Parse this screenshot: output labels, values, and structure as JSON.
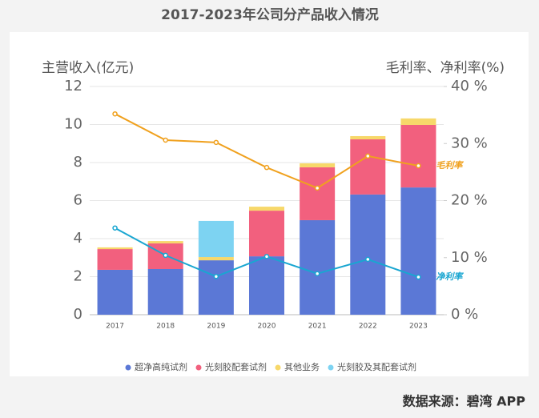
{
  "chart_data": {
    "type": "bar",
    "title": "2017-2023年公司分产品收入情况",
    "source": "数据来源：碧湾 APP",
    "ylabel": "主营收入(亿元)",
    "y2label": "毛利率、净利率(%)",
    "categories": [
      "2017",
      "2018",
      "2019",
      "2020",
      "2021",
      "2022",
      "2023"
    ],
    "stacked": true,
    "series": [
      {
        "name": "超净高纯试剂",
        "color": "#5b78d6",
        "values": [
          2.36,
          2.4,
          2.86,
          3.07,
          4.97,
          6.32,
          6.69
        ]
      },
      {
        "name": "光刻胶配套试剂",
        "color": "#f2607e",
        "values": [
          1.09,
          1.35,
          0,
          2.4,
          2.78,
          2.9,
          3.29
        ]
      },
      {
        "name": "其他业务",
        "color": "#f7d86a",
        "values": [
          0.09,
          0.12,
          0.17,
          0.21,
          0.21,
          0.17,
          0.34
        ]
      },
      {
        "name": "光刻胶及其配套试剂",
        "color": "#7dd3f2",
        "values": [
          0,
          0,
          1.9,
          0,
          0,
          0,
          0
        ]
      },
      {
        "name": "毛利率",
        "type": "line",
        "axis": "y2",
        "color": "#f0a11e",
        "values": [
          35.2,
          30.6,
          30.2,
          25.8,
          22.2,
          27.8,
          26.1
        ]
      },
      {
        "name": "净利率",
        "type": "line",
        "axis": "y2",
        "color": "#19a6d1",
        "values": [
          15.2,
          10.4,
          6.7,
          10.2,
          7.2,
          9.7,
          6.6
        ]
      }
    ],
    "ylim": [
      0,
      12
    ],
    "yticks": [
      0,
      2,
      4,
      6,
      8,
      10,
      12
    ],
    "y2lim": [
      0,
      40
    ],
    "y2ticks": [
      {
        "value": 0,
        "label": "0 %"
      },
      {
        "value": 10,
        "label": "10 %"
      },
      {
        "value": 20,
        "label": "20 %"
      },
      {
        "value": 30,
        "label": "30 %"
      },
      {
        "value": 40,
        "label": "40 %"
      }
    ],
    "grid": true
  }
}
